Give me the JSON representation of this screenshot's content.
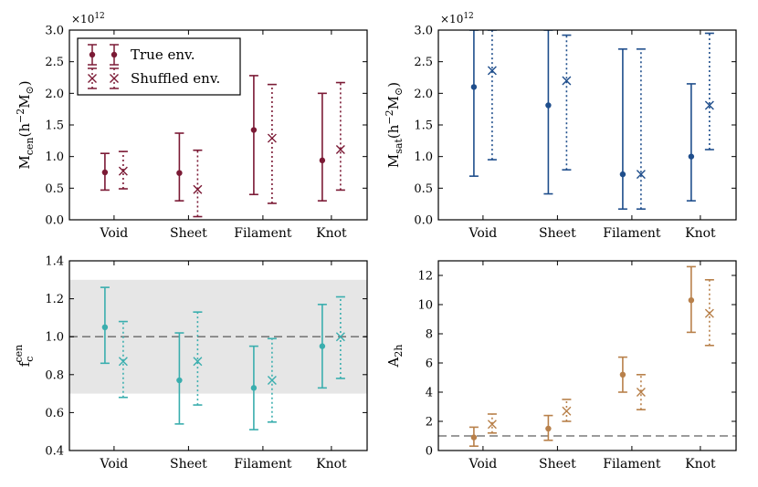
{
  "chart_data": [
    {
      "id": "m_cen",
      "type": "errorbar",
      "ylabel": "M_cen(h⁻²M☉)",
      "ylabel_parts": {
        "main": "M",
        "sub": "cen",
        "tail": "(h",
        "sup": "−2",
        "tail2": "M",
        "sub2": "⊙",
        "close": ")"
      },
      "scale_label": "×10",
      "scale_exp": "12",
      "categories": [
        "Void",
        "Sheet",
        "Filament",
        "Knot"
      ],
      "ylim": [
        0.0,
        3.0
      ],
      "yticks": [
        "0.0",
        "0.5",
        "1.0",
        "1.5",
        "2.0",
        "2.5",
        "3.0"
      ],
      "ytick_values": [
        0.0,
        0.5,
        1.0,
        1.5,
        2.0,
        2.5,
        3.0
      ],
      "color": "#7b1a35",
      "legend": {
        "position": "top-left",
        "entries": [
          "True env.",
          "Shuffled env."
        ]
      },
      "series": [
        {
          "name": "True env.",
          "marker": "dot",
          "values": [
            0.75,
            0.74,
            1.42,
            0.94
          ],
          "lower": [
            0.47,
            0.3,
            0.4,
            0.3
          ],
          "upper": [
            1.05,
            1.37,
            2.28,
            2.0
          ]
        },
        {
          "name": "Shuffled env.",
          "marker": "x",
          "values": [
            0.77,
            0.48,
            1.29,
            1.11
          ],
          "lower": [
            0.49,
            0.05,
            0.26,
            0.47
          ],
          "upper": [
            1.08,
            1.1,
            2.14,
            2.17
          ]
        }
      ]
    },
    {
      "id": "m_sat",
      "type": "errorbar",
      "ylabel": "M_sat(h⁻²M☉)",
      "ylabel_parts": {
        "main": "M",
        "sub": "sat",
        "tail": "(h",
        "sup": "−2",
        "tail2": "M",
        "sub2": "⊙",
        "close": ")"
      },
      "scale_label": "×10",
      "scale_exp": "12",
      "categories": [
        "Void",
        "Sheet",
        "Filament",
        "Knot"
      ],
      "ylim": [
        0.0,
        3.0
      ],
      "yticks": [
        "0.0",
        "0.5",
        "1.0",
        "1.5",
        "2.0",
        "2.5",
        "3.0"
      ],
      "ytick_values": [
        0.0,
        0.5,
        1.0,
        1.5,
        2.0,
        2.5,
        3.0
      ],
      "color": "#1f4e8c",
      "series": [
        {
          "name": "True env.",
          "marker": "dot",
          "values": [
            2.1,
            1.81,
            0.72,
            1.0
          ],
          "lower": [
            0.69,
            0.41,
            0.17,
            0.3
          ],
          "upper": [
            3.0,
            3.0,
            2.7,
            2.15
          ]
        },
        {
          "name": "Shuffled env.",
          "marker": "x",
          "values": [
            2.36,
            2.2,
            0.72,
            1.81
          ],
          "lower": [
            0.95,
            0.79,
            0.17,
            1.11
          ],
          "upper": [
            3.0,
            2.92,
            2.7,
            2.95
          ]
        }
      ]
    },
    {
      "id": "fc_cen",
      "type": "errorbar",
      "ylabel": "f_c^cen",
      "ylabel_parts": {
        "main": "f",
        "sub": "c",
        "sup": "cen"
      },
      "categories": [
        "Void",
        "Sheet",
        "Filament",
        "Knot"
      ],
      "ylim": [
        0.4,
        1.4
      ],
      "yticks": [
        "0.4",
        "0.6",
        "0.8",
        "1.0",
        "1.2",
        "1.4"
      ],
      "ytick_values": [
        0.4,
        0.6,
        0.8,
        1.0,
        1.2,
        1.4
      ],
      "color": "#3aaeae",
      "band": [
        0.7,
        1.3
      ],
      "hline": 1.0,
      "series": [
        {
          "name": "True env.",
          "marker": "dot",
          "values": [
            1.05,
            0.77,
            0.73,
            0.95
          ],
          "lower": [
            0.86,
            0.54,
            0.51,
            0.73
          ],
          "upper": [
            1.26,
            1.02,
            0.95,
            1.17
          ]
        },
        {
          "name": "Shuffled env.",
          "marker": "x",
          "values": [
            0.87,
            0.87,
            0.77,
            1.0
          ],
          "lower": [
            0.68,
            0.64,
            0.55,
            0.78
          ],
          "upper": [
            1.08,
            1.13,
            0.99,
            1.21
          ]
        }
      ]
    },
    {
      "id": "a_2h",
      "type": "errorbar",
      "ylabel": "A_2h",
      "ylabel_parts": {
        "main": "A",
        "sub": "2h"
      },
      "categories": [
        "Void",
        "Sheet",
        "Filament",
        "Knot"
      ],
      "ylim": [
        0,
        13
      ],
      "yticks": [
        "0",
        "2",
        "4",
        "6",
        "8",
        "10",
        "12"
      ],
      "ytick_values": [
        0,
        2,
        4,
        6,
        8,
        10,
        12
      ],
      "color": "#b8804a",
      "hline": 1.0,
      "series": [
        {
          "name": "True env.",
          "marker": "dot",
          "values": [
            0.9,
            1.5,
            5.2,
            10.3
          ],
          "lower": [
            0.3,
            0.7,
            4.0,
            8.1
          ],
          "upper": [
            1.6,
            2.4,
            6.4,
            12.6
          ]
        },
        {
          "name": "Shuffled env.",
          "marker": "x",
          "values": [
            1.8,
            2.7,
            4.0,
            9.4
          ],
          "lower": [
            1.2,
            2.0,
            2.8,
            7.2
          ],
          "upper": [
            2.5,
            3.5,
            5.2,
            11.7
          ]
        }
      ]
    }
  ]
}
